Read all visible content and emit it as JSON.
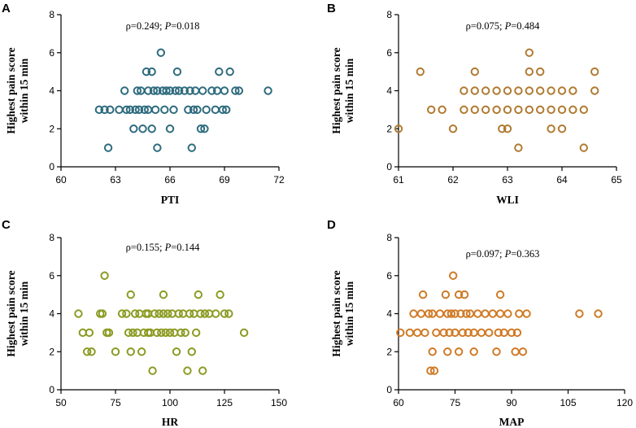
{
  "chart_data": [
    {
      "type": "scatter",
      "panel": "A",
      "title": "",
      "ylabel_lines": [
        "Highest pain score",
        "within 15 min"
      ],
      "xlabel": "PTI",
      "stat_rho": "ρ=0.249",
      "stat_sep": "; ",
      "stat_p_label": "P",
      "stat_p_value": "=0.018",
      "xlim": [
        60,
        72
      ],
      "ylim": [
        0,
        8
      ],
      "xticks": [
        60,
        63,
        66,
        69,
        72
      ],
      "yticks": [
        0,
        2,
        4,
        6,
        8
      ],
      "xtick_labels": [
        "60",
        "63",
        "66",
        "69",
        "72"
      ],
      "ytick_labels": [
        "0",
        "2",
        "4",
        "6",
        "8"
      ],
      "color": "#2e6b7e",
      "points": [
        [
          62.1,
          3
        ],
        [
          62.4,
          3
        ],
        [
          62.7,
          3
        ],
        [
          62.6,
          1
        ],
        [
          63.2,
          3
        ],
        [
          63.5,
          4
        ],
        [
          63.6,
          3
        ],
        [
          63.8,
          3
        ],
        [
          64.0,
          2
        ],
        [
          64.1,
          3
        ],
        [
          64.2,
          4
        ],
        [
          64.3,
          3
        ],
        [
          64.4,
          4
        ],
        [
          64.5,
          2
        ],
        [
          64.6,
          3
        ],
        [
          64.7,
          5
        ],
        [
          64.8,
          4
        ],
        [
          64.8,
          3
        ],
        [
          65.0,
          2
        ],
        [
          65.0,
          5
        ],
        [
          65.1,
          4
        ],
        [
          65.2,
          3
        ],
        [
          65.3,
          4
        ],
        [
          65.3,
          1
        ],
        [
          65.5,
          6
        ],
        [
          65.6,
          4
        ],
        [
          65.7,
          3
        ],
        [
          65.8,
          4
        ],
        [
          66.0,
          2
        ],
        [
          66.0,
          4
        ],
        [
          66.2,
          3
        ],
        [
          66.3,
          4
        ],
        [
          66.4,
          5
        ],
        [
          66.5,
          4
        ],
        [
          66.8,
          4
        ],
        [
          67.0,
          3
        ],
        [
          67.1,
          4
        ],
        [
          67.2,
          1
        ],
        [
          67.3,
          3
        ],
        [
          67.4,
          4
        ],
        [
          67.5,
          3
        ],
        [
          67.7,
          2
        ],
        [
          67.8,
          4
        ],
        [
          67.9,
          2
        ],
        [
          68.0,
          3
        ],
        [
          68.3,
          4
        ],
        [
          68.5,
          3
        ],
        [
          68.6,
          4
        ],
        [
          68.7,
          5
        ],
        [
          68.9,
          3
        ],
        [
          69.0,
          4
        ],
        [
          69.1,
          3
        ],
        [
          69.3,
          5
        ],
        [
          69.6,
          4
        ],
        [
          69.8,
          4
        ],
        [
          71.4,
          4
        ]
      ]
    },
    {
      "type": "scatter",
      "panel": "B",
      "title": "",
      "ylabel_lines": [
        "Highest pain score",
        "within 15 min"
      ],
      "xlabel": "WLI",
      "stat_rho": "ρ=0.075",
      "stat_sep": "; ",
      "stat_p_label": "P",
      "stat_p_value": "=0.484",
      "xlim": [
        61,
        65
      ],
      "ylim": [
        0,
        8
      ],
      "xticks": [
        61,
        62,
        63,
        64,
        65
      ],
      "yticks": [
        0,
        2,
        4,
        6,
        8
      ],
      "xtick_labels": [
        "61",
        "62",
        "63",
        "64",
        "65"
      ],
      "ytick_labels": [
        "0",
        "2",
        "4",
        "6",
        "8"
      ],
      "color": "#b07a30",
      "points": [
        [
          61.0,
          2
        ],
        [
          61.4,
          5
        ],
        [
          61.6,
          3
        ],
        [
          61.8,
          3
        ],
        [
          62.0,
          2
        ],
        [
          62.2,
          3
        ],
        [
          62.2,
          4
        ],
        [
          62.4,
          3
        ],
        [
          62.4,
          4
        ],
        [
          62.4,
          5
        ],
        [
          62.6,
          3
        ],
        [
          62.6,
          4
        ],
        [
          62.8,
          3
        ],
        [
          62.8,
          4
        ],
        [
          62.9,
          2
        ],
        [
          63.0,
          3
        ],
        [
          63.0,
          2
        ],
        [
          63.0,
          4
        ],
        [
          63.2,
          4
        ],
        [
          63.2,
          3
        ],
        [
          63.2,
          1
        ],
        [
          63.4,
          3
        ],
        [
          63.4,
          4
        ],
        [
          63.4,
          5
        ],
        [
          63.4,
          6
        ],
        [
          63.6,
          3
        ],
        [
          63.6,
          4
        ],
        [
          63.6,
          5
        ],
        [
          63.8,
          3
        ],
        [
          63.8,
          4
        ],
        [
          63.8,
          2
        ],
        [
          64.0,
          3
        ],
        [
          64.0,
          2
        ],
        [
          64.0,
          4
        ],
        [
          64.2,
          3
        ],
        [
          64.2,
          4
        ],
        [
          64.4,
          3
        ],
        [
          64.4,
          1
        ],
        [
          64.6,
          4
        ],
        [
          64.6,
          5
        ]
      ]
    },
    {
      "type": "scatter",
      "panel": "C",
      "title": "",
      "ylabel_lines": [
        "Highest pain score",
        "within 15 min"
      ],
      "xlabel": "HR",
      "stat_rho": "ρ=0.155",
      "stat_sep": "; ",
      "stat_p_label": "P",
      "stat_p_value": "=0.144",
      "xlim": [
        50,
        150
      ],
      "ylim": [
        0,
        8
      ],
      "xticks": [
        50,
        75,
        100,
        125,
        150
      ],
      "yticks": [
        0,
        2,
        4,
        6,
        8
      ],
      "xtick_labels": [
        "50",
        "75",
        "100",
        "125",
        "150"
      ],
      "ytick_labels": [
        "0",
        "2",
        "4",
        "6",
        "8"
      ],
      "color": "#8b9b22",
      "points": [
        [
          58,
          4
        ],
        [
          60,
          3
        ],
        [
          62,
          2
        ],
        [
          63,
          3
        ],
        [
          64,
          2
        ],
        [
          68,
          4
        ],
        [
          69,
          4
        ],
        [
          70,
          6
        ],
        [
          71,
          3
        ],
        [
          72,
          3
        ],
        [
          75,
          2
        ],
        [
          78,
          4
        ],
        [
          80,
          4
        ],
        [
          81,
          3
        ],
        [
          82,
          2
        ],
        [
          82,
          5
        ],
        [
          83,
          3
        ],
        [
          84,
          4
        ],
        [
          85,
          3
        ],
        [
          86,
          4
        ],
        [
          87,
          2
        ],
        [
          88,
          3
        ],
        [
          89,
          4
        ],
        [
          90,
          3
        ],
        [
          90,
          4
        ],
        [
          91,
          3
        ],
        [
          92,
          1
        ],
        [
          93,
          4
        ],
        [
          94,
          3
        ],
        [
          95,
          4
        ],
        [
          96,
          3
        ],
        [
          97,
          5
        ],
        [
          97,
          4
        ],
        [
          98,
          3
        ],
        [
          99,
          4
        ],
        [
          100,
          3
        ],
        [
          101,
          4
        ],
        [
          102,
          3
        ],
        [
          103,
          2
        ],
        [
          104,
          4
        ],
        [
          105,
          3
        ],
        [
          106,
          4
        ],
        [
          107,
          3
        ],
        [
          108,
          1
        ],
        [
          109,
          4
        ],
        [
          110,
          2
        ],
        [
          111,
          4
        ],
        [
          112,
          3
        ],
        [
          113,
          5
        ],
        [
          114,
          4
        ],
        [
          115,
          1
        ],
        [
          116,
          4
        ],
        [
          118,
          4
        ],
        [
          121,
          4
        ],
        [
          123,
          5
        ],
        [
          125,
          4
        ],
        [
          127,
          4
        ],
        [
          134,
          3
        ]
      ]
    },
    {
      "type": "scatter",
      "panel": "D",
      "title": "",
      "ylabel_lines": [
        "Highest pain score",
        "within 15 min"
      ],
      "xlabel": "MAP",
      "stat_rho": "ρ=0.097",
      "stat_sep": "; ",
      "stat_p_label": "P",
      "stat_p_value": "=0.363",
      "xlim": [
        60,
        120
      ],
      "ylim": [
        0,
        8
      ],
      "xticks": [
        60,
        75,
        90,
        105,
        120
      ],
      "yticks": [
        0,
        2,
        4,
        6,
        8
      ],
      "xtick_labels": [
        "60",
        "75",
        "90",
        "105",
        "120"
      ],
      "ytick_labels": [
        "0",
        "2",
        "4",
        "6",
        "8"
      ],
      "color": "#d07a26",
      "points": [
        [
          60.5,
          3
        ],
        [
          63,
          3
        ],
        [
          64,
          4
        ],
        [
          65,
          3
        ],
        [
          66,
          4
        ],
        [
          66.5,
          5
        ],
        [
          67,
          3
        ],
        [
          68,
          4
        ],
        [
          68.5,
          1
        ],
        [
          69,
          2
        ],
        [
          69,
          4
        ],
        [
          69.5,
          1
        ],
        [
          70,
          3
        ],
        [
          71,
          4
        ],
        [
          72,
          3
        ],
        [
          72.5,
          5
        ],
        [
          73,
          4
        ],
        [
          73,
          2
        ],
        [
          73.5,
          3
        ],
        [
          74,
          4
        ],
        [
          74.5,
          6
        ],
        [
          75,
          3
        ],
        [
          75,
          4
        ],
        [
          76,
          5
        ],
        [
          76,
          2
        ],
        [
          76.5,
          4
        ],
        [
          77,
          3
        ],
        [
          77.5,
          5
        ],
        [
          78,
          4
        ],
        [
          78.5,
          3
        ],
        [
          79,
          4
        ],
        [
          80,
          3
        ],
        [
          80,
          2
        ],
        [
          81,
          4
        ],
        [
          82,
          3
        ],
        [
          83,
          4
        ],
        [
          84,
          3
        ],
        [
          85,
          4
        ],
        [
          86,
          2
        ],
        [
          86.5,
          3
        ],
        [
          87,
          5
        ],
        [
          87,
          4
        ],
        [
          88,
          3
        ],
        [
          89,
          4
        ],
        [
          90,
          3
        ],
        [
          91,
          2
        ],
        [
          91.5,
          3
        ],
        [
          92,
          4
        ],
        [
          93,
          2
        ],
        [
          94,
          4
        ],
        [
          108,
          4
        ],
        [
          113,
          4
        ]
      ]
    }
  ]
}
